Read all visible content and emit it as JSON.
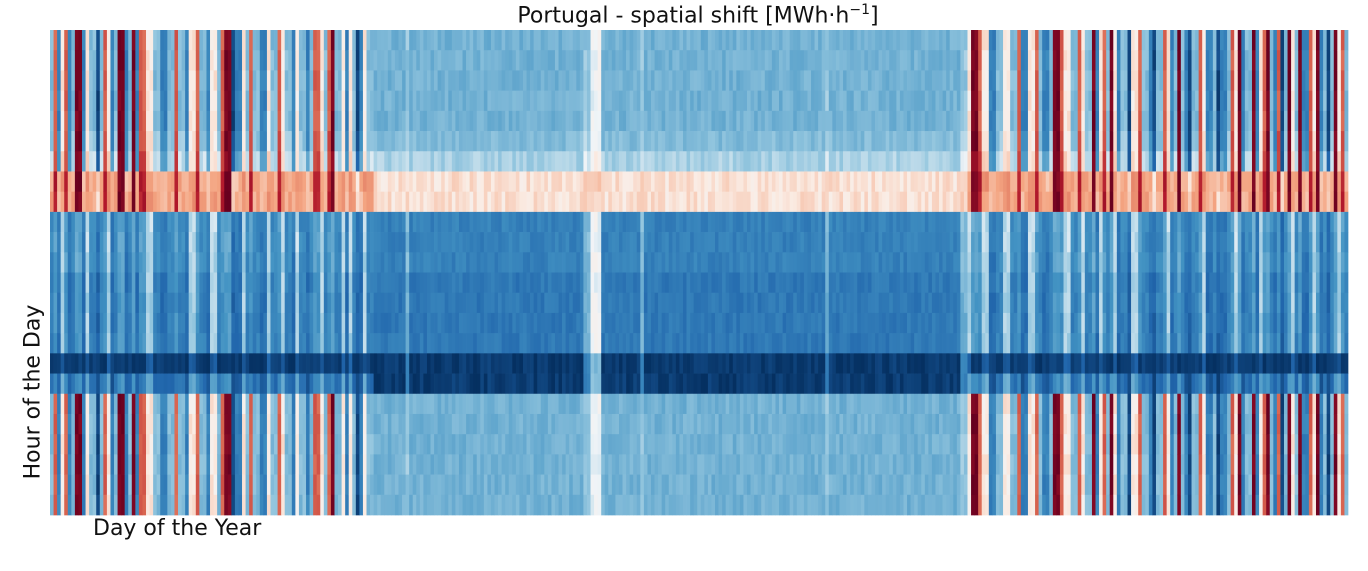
{
  "chart_data": {
    "type": "heatmap",
    "title": "Portugal - spatial shift [MWh·h",
    "title_unit_sup": "−1",
    "title_close": "]",
    "xlabel": "Day of the Year",
    "ylabel": "Hour of the Day",
    "x_range": [
      1,
      365
    ],
    "y_range": [
      0,
      23
    ],
    "colormap": "RdBu_r",
    "color_range": [
      -1,
      1
    ],
    "grid": false,
    "legend": "none",
    "segments": [
      {
        "from": 1,
        "to": 1,
        "profile": "light-blue"
      },
      {
        "from": 2,
        "to": 2,
        "profile": "mixed-red"
      },
      {
        "from": 3,
        "to": 3,
        "profile": "mixed-blue"
      },
      {
        "from": 4,
        "to": 4,
        "profile": "neutral"
      },
      {
        "from": 5,
        "to": 5,
        "profile": "mixed-red"
      },
      {
        "from": 6,
        "to": 6,
        "profile": "mixed-blue"
      },
      {
        "from": 7,
        "to": 7,
        "profile": "light-blue"
      },
      {
        "from": 8,
        "to": 9,
        "profile": "strong-red"
      },
      {
        "from": 10,
        "to": 10,
        "profile": "mixed-blue"
      },
      {
        "from": 11,
        "to": 11,
        "profile": "neutral"
      },
      {
        "from": 12,
        "to": 13,
        "profile": "light-blue"
      },
      {
        "from": 14,
        "to": 14,
        "profile": "strong-blue"
      },
      {
        "from": 15,
        "to": 15,
        "profile": "light-blue"
      },
      {
        "from": 16,
        "to": 16,
        "profile": "mixed-red"
      },
      {
        "from": 17,
        "to": 17,
        "profile": "neutral"
      },
      {
        "from": 18,
        "to": 18,
        "profile": "mixed-blue"
      },
      {
        "from": 19,
        "to": 19,
        "profile": "light-blue"
      },
      {
        "from": 20,
        "to": 21,
        "profile": "strong-red"
      },
      {
        "from": 22,
        "to": 22,
        "profile": "mixed-blue"
      },
      {
        "from": 23,
        "to": 23,
        "profile": "light-blue"
      },
      {
        "from": 24,
        "to": 24,
        "profile": "strong-red"
      },
      {
        "from": 25,
        "to": 25,
        "profile": "mixed-blue"
      },
      {
        "from": 26,
        "to": 27,
        "profile": "mixed-red"
      },
      {
        "from": 28,
        "to": 29,
        "profile": "neutral"
      },
      {
        "from": 30,
        "to": 31,
        "profile": "light-blue"
      },
      {
        "from": 32,
        "to": 33,
        "profile": "mixed-blue"
      },
      {
        "from": 34,
        "to": 35,
        "profile": "light-blue"
      },
      {
        "from": 36,
        "to": 36,
        "profile": "mixed-red"
      },
      {
        "from": 37,
        "to": 38,
        "profile": "light-blue"
      },
      {
        "from": 39,
        "to": 39,
        "profile": "mixed-blue"
      },
      {
        "from": 40,
        "to": 41,
        "profile": "neutral"
      },
      {
        "from": 42,
        "to": 42,
        "profile": "mixed-red"
      },
      {
        "from": 43,
        "to": 44,
        "profile": "light-blue"
      },
      {
        "from": 45,
        "to": 45,
        "profile": "mixed-blue"
      },
      {
        "from": 46,
        "to": 47,
        "profile": "neutral"
      },
      {
        "from": 48,
        "to": 48,
        "profile": "light-blue"
      },
      {
        "from": 49,
        "to": 49,
        "profile": "mixed-red"
      },
      {
        "from": 50,
        "to": 51,
        "profile": "strong-red"
      },
      {
        "from": 52,
        "to": 52,
        "profile": "strong-blue"
      },
      {
        "from": 53,
        "to": 54,
        "profile": "mixed-blue"
      },
      {
        "from": 55,
        "to": 55,
        "profile": "neutral"
      },
      {
        "from": 56,
        "to": 56,
        "profile": "light-blue"
      },
      {
        "from": 57,
        "to": 57,
        "profile": "mixed-red"
      },
      {
        "from": 58,
        "to": 59,
        "profile": "light-blue"
      },
      {
        "from": 60,
        "to": 61,
        "profile": "mixed-blue"
      },
      {
        "from": 62,
        "to": 62,
        "profile": "neutral"
      },
      {
        "from": 63,
        "to": 64,
        "profile": "light-blue"
      },
      {
        "from": 65,
        "to": 65,
        "profile": "mixed-red"
      },
      {
        "from": 66,
        "to": 66,
        "profile": "neutral"
      },
      {
        "from": 67,
        "to": 68,
        "profile": "light-blue"
      },
      {
        "from": 69,
        "to": 69,
        "profile": "mixed-blue"
      },
      {
        "from": 70,
        "to": 70,
        "profile": "neutral"
      },
      {
        "from": 71,
        "to": 72,
        "profile": "light-blue"
      },
      {
        "from": 73,
        "to": 73,
        "profile": "mixed-blue"
      },
      {
        "from": 74,
        "to": 74,
        "profile": "light-blue"
      },
      {
        "from": 75,
        "to": 76,
        "profile": "mixed-red"
      },
      {
        "from": 77,
        "to": 77,
        "profile": "neutral"
      },
      {
        "from": 78,
        "to": 78,
        "profile": "light-blue"
      },
      {
        "from": 79,
        "to": 79,
        "profile": "mixed-red"
      },
      {
        "from": 80,
        "to": 80,
        "profile": "strong-red"
      },
      {
        "from": 81,
        "to": 82,
        "profile": "light-blue"
      },
      {
        "from": 83,
        "to": 83,
        "profile": "neutral"
      },
      {
        "from": 84,
        "to": 84,
        "profile": "mixed-blue"
      },
      {
        "from": 85,
        "to": 85,
        "profile": "neutral"
      },
      {
        "from": 86,
        "to": 86,
        "profile": "light-blue"
      },
      {
        "from": 87,
        "to": 87,
        "profile": "strong-blue"
      },
      {
        "from": 88,
        "to": 88,
        "profile": "mixed-blue"
      },
      {
        "from": 89,
        "to": 89,
        "profile": "neutral"
      },
      {
        "from": 90,
        "to": 91,
        "profile": "light-blue"
      },
      {
        "from": 92,
        "to": 100,
        "profile": "summer"
      },
      {
        "from": 101,
        "to": 101,
        "profile": "summer-pale"
      },
      {
        "from": 102,
        "to": 150,
        "profile": "summer"
      },
      {
        "from": 151,
        "to": 152,
        "profile": "summer-pale"
      },
      {
        "from": 153,
        "to": 155,
        "profile": "summer-white"
      },
      {
        "from": 156,
        "to": 166,
        "profile": "summer"
      },
      {
        "from": 167,
        "to": 167,
        "profile": "summer-pale"
      },
      {
        "from": 168,
        "to": 218,
        "profile": "summer"
      },
      {
        "from": 219,
        "to": 219,
        "profile": "summer-pale"
      },
      {
        "from": 220,
        "to": 256,
        "profile": "summer"
      },
      {
        "from": 257,
        "to": 258,
        "profile": "summer-pale"
      },
      {
        "from": 259,
        "to": 259,
        "profile": "neutral"
      },
      {
        "from": 260,
        "to": 261,
        "profile": "strong-red"
      },
      {
        "from": 262,
        "to": 262,
        "profile": "mixed-red"
      },
      {
        "from": 263,
        "to": 264,
        "profile": "neutral"
      },
      {
        "from": 265,
        "to": 266,
        "profile": "mixed-blue"
      },
      {
        "from": 267,
        "to": 268,
        "profile": "light-blue"
      },
      {
        "from": 269,
        "to": 270,
        "profile": "neutral"
      },
      {
        "from": 271,
        "to": 272,
        "profile": "light-blue"
      },
      {
        "from": 273,
        "to": 273,
        "profile": "mixed-red"
      },
      {
        "from": 274,
        "to": 275,
        "profile": "mixed-blue"
      },
      {
        "from": 276,
        "to": 277,
        "profile": "neutral"
      },
      {
        "from": 278,
        "to": 278,
        "profile": "mixed-red"
      },
      {
        "from": 279,
        "to": 279,
        "profile": "light-blue"
      },
      {
        "from": 280,
        "to": 281,
        "profile": "mixed-blue"
      },
      {
        "from": 282,
        "to": 282,
        "profile": "light-blue"
      },
      {
        "from": 283,
        "to": 284,
        "profile": "strong-red"
      },
      {
        "from": 285,
        "to": 285,
        "profile": "mixed-red"
      },
      {
        "from": 286,
        "to": 287,
        "profile": "neutral"
      },
      {
        "from": 288,
        "to": 289,
        "profile": "light-blue"
      },
      {
        "from": 290,
        "to": 290,
        "profile": "mixed-red"
      },
      {
        "from": 291,
        "to": 291,
        "profile": "neutral"
      },
      {
        "from": 292,
        "to": 293,
        "profile": "light-blue"
      },
      {
        "from": 294,
        "to": 294,
        "profile": "strong-red"
      },
      {
        "from": 295,
        "to": 295,
        "profile": "mixed-blue"
      },
      {
        "from": 296,
        "to": 296,
        "profile": "neutral"
      },
      {
        "from": 297,
        "to": 297,
        "profile": "mixed-red"
      },
      {
        "from": 298,
        "to": 298,
        "profile": "light-blue"
      },
      {
        "from": 299,
        "to": 299,
        "profile": "strong-red"
      },
      {
        "from": 300,
        "to": 300,
        "profile": "neutral"
      },
      {
        "from": 301,
        "to": 301,
        "profile": "mixed-blue"
      },
      {
        "from": 302,
        "to": 303,
        "profile": "light-blue"
      },
      {
        "from": 304,
        "to": 304,
        "profile": "strong-blue"
      },
      {
        "from": 305,
        "to": 306,
        "profile": "neutral"
      },
      {
        "from": 307,
        "to": 307,
        "profile": "mixed-red"
      },
      {
        "from": 308,
        "to": 309,
        "profile": "light-blue"
      },
      {
        "from": 310,
        "to": 310,
        "profile": "mixed-blue"
      },
      {
        "from": 311,
        "to": 311,
        "profile": "strong-blue"
      },
      {
        "from": 312,
        "to": 313,
        "profile": "light-blue"
      },
      {
        "from": 314,
        "to": 314,
        "profile": "mixed-red"
      },
      {
        "from": 315,
        "to": 315,
        "profile": "neutral"
      },
      {
        "from": 316,
        "to": 316,
        "profile": "mixed-blue"
      },
      {
        "from": 317,
        "to": 317,
        "profile": "light-blue"
      },
      {
        "from": 318,
        "to": 318,
        "profile": "strong-red"
      },
      {
        "from": 319,
        "to": 319,
        "profile": "light-blue"
      },
      {
        "from": 320,
        "to": 320,
        "profile": "mixed-blue"
      },
      {
        "from": 321,
        "to": 321,
        "profile": "strong-blue"
      },
      {
        "from": 322,
        "to": 323,
        "profile": "light-blue"
      },
      {
        "from": 324,
        "to": 324,
        "profile": "mixed-red"
      },
      {
        "from": 325,
        "to": 325,
        "profile": "neutral"
      },
      {
        "from": 326,
        "to": 327,
        "profile": "mixed-blue"
      },
      {
        "from": 328,
        "to": 328,
        "profile": "light-blue"
      },
      {
        "from": 329,
        "to": 329,
        "profile": "strong-blue"
      },
      {
        "from": 330,
        "to": 331,
        "profile": "mixed-blue"
      },
      {
        "from": 332,
        "to": 332,
        "profile": "light-blue"
      },
      {
        "from": 333,
        "to": 333,
        "profile": "mixed-red"
      },
      {
        "from": 334,
        "to": 334,
        "profile": "neutral"
      },
      {
        "from": 335,
        "to": 335,
        "profile": "strong-red"
      },
      {
        "from": 336,
        "to": 336,
        "profile": "mixed-blue"
      },
      {
        "from": 337,
        "to": 338,
        "profile": "light-blue"
      },
      {
        "from": 339,
        "to": 339,
        "profile": "strong-red"
      },
      {
        "from": 340,
        "to": 340,
        "profile": "mixed-blue"
      },
      {
        "from": 341,
        "to": 341,
        "profile": "neutral"
      },
      {
        "from": 342,
        "to": 342,
        "profile": "mixed-red"
      },
      {
        "from": 343,
        "to": 343,
        "profile": "strong-red"
      },
      {
        "from": 344,
        "to": 344,
        "profile": "light-blue"
      },
      {
        "from": 345,
        "to": 345,
        "profile": "mixed-blue"
      },
      {
        "from": 346,
        "to": 346,
        "profile": "mixed-red"
      },
      {
        "from": 347,
        "to": 347,
        "profile": "strong-blue"
      },
      {
        "from": 348,
        "to": 348,
        "profile": "light-blue"
      },
      {
        "from": 349,
        "to": 349,
        "profile": "strong-red"
      },
      {
        "from": 350,
        "to": 350,
        "profile": "neutral"
      },
      {
        "from": 351,
        "to": 351,
        "profile": "light-blue"
      },
      {
        "from": 352,
        "to": 352,
        "profile": "strong-red"
      },
      {
        "from": 353,
        "to": 354,
        "profile": "mixed-blue"
      },
      {
        "from": 355,
        "to": 355,
        "profile": "mixed-red"
      },
      {
        "from": 356,
        "to": 356,
        "profile": "neutral"
      },
      {
        "from": 357,
        "to": 357,
        "profile": "strong-red"
      },
      {
        "from": 358,
        "to": 358,
        "profile": "mixed-blue"
      },
      {
        "from": 359,
        "to": 359,
        "profile": "light-blue"
      },
      {
        "from": 360,
        "to": 360,
        "profile": "strong-blue"
      },
      {
        "from": 361,
        "to": 361,
        "profile": "light-blue"
      },
      {
        "from": 362,
        "to": 362,
        "profile": "strong-red"
      },
      {
        "from": 363,
        "to": 363,
        "profile": "neutral"
      },
      {
        "from": 364,
        "to": 364,
        "profile": "mixed-red"
      },
      {
        "from": 365,
        "to": 365,
        "profile": "light-blue"
      }
    ],
    "profiles": {
      "summer": [
        -0.35,
        -0.35,
        -0.35,
        -0.35,
        -0.35,
        -0.3,
        -0.2,
        0.08,
        0.08,
        -0.6,
        -0.6,
        -0.6,
        -0.65,
        -0.65,
        -0.65,
        -0.65,
        -0.95,
        -0.95,
        -0.35,
        -0.35,
        -0.35,
        -0.35,
        -0.35,
        -0.35
      ],
      "summer-pale": [
        -0.25,
        -0.25,
        -0.25,
        -0.25,
        -0.25,
        -0.2,
        -0.1,
        0.12,
        0.12,
        -0.3,
        -0.3,
        -0.3,
        -0.35,
        -0.35,
        -0.35,
        -0.35,
        -0.6,
        -0.6,
        -0.25,
        -0.25,
        -0.25,
        -0.25,
        -0.25,
        -0.25
      ],
      "summer-white": [
        -0.05,
        -0.05,
        -0.05,
        -0.05,
        -0.05,
        -0.05,
        0.0,
        0.15,
        0.15,
        -0.05,
        -0.05,
        -0.05,
        -0.05,
        -0.05,
        -0.05,
        -0.05,
        -0.3,
        -0.3,
        -0.05,
        -0.05,
        -0.05,
        -0.05,
        -0.05,
        -0.05
      ],
      "light-blue": [
        -0.3,
        -0.3,
        -0.3,
        -0.3,
        -0.3,
        -0.25,
        -0.15,
        0.25,
        0.25,
        -0.55,
        -0.55,
        -0.55,
        -0.6,
        -0.6,
        -0.6,
        -0.6,
        -0.95,
        -0.7,
        -0.3,
        -0.3,
        -0.3,
        -0.3,
        -0.3,
        -0.3
      ],
      "neutral": [
        0.05,
        0.05,
        0.05,
        0.05,
        0.05,
        0.05,
        0.1,
        0.3,
        0.3,
        -0.15,
        -0.15,
        -0.2,
        -0.2,
        -0.2,
        -0.2,
        -0.2,
        -0.8,
        -0.4,
        0.05,
        0.05,
        0.05,
        0.05,
        0.05,
        0.05
      ],
      "mixed-red": [
        0.5,
        0.5,
        0.5,
        0.5,
        0.5,
        0.55,
        0.6,
        0.75,
        0.75,
        -0.45,
        -0.45,
        -0.45,
        -0.5,
        -0.5,
        -0.5,
        -0.5,
        -0.95,
        -0.6,
        0.5,
        0.5,
        0.5,
        0.5,
        0.5,
        0.5
      ],
      "strong-red": [
        0.95,
        0.95,
        0.95,
        0.95,
        0.95,
        0.95,
        0.9,
        0.95,
        0.95,
        -0.4,
        -0.4,
        -0.4,
        -0.45,
        -0.45,
        -0.45,
        -0.45,
        -0.95,
        -0.5,
        0.95,
        0.95,
        0.95,
        0.95,
        0.95,
        0.95
      ],
      "mixed-blue": [
        -0.6,
        -0.6,
        -0.6,
        -0.6,
        -0.6,
        -0.55,
        -0.45,
        0.2,
        0.2,
        -0.65,
        -0.65,
        -0.65,
        -0.7,
        -0.7,
        -0.7,
        -0.7,
        -0.95,
        -0.8,
        -0.6,
        -0.6,
        -0.6,
        -0.6,
        -0.6,
        -0.6
      ],
      "strong-blue": [
        -0.9,
        -0.9,
        -0.9,
        -0.9,
        -0.9,
        -0.85,
        -0.8,
        0.1,
        0.1,
        -0.7,
        -0.7,
        -0.7,
        -0.75,
        -0.75,
        -0.75,
        -0.75,
        -0.98,
        -0.9,
        -0.9,
        -0.9,
        -0.9,
        -0.9,
        -0.9,
        -0.9
      ]
    }
  }
}
